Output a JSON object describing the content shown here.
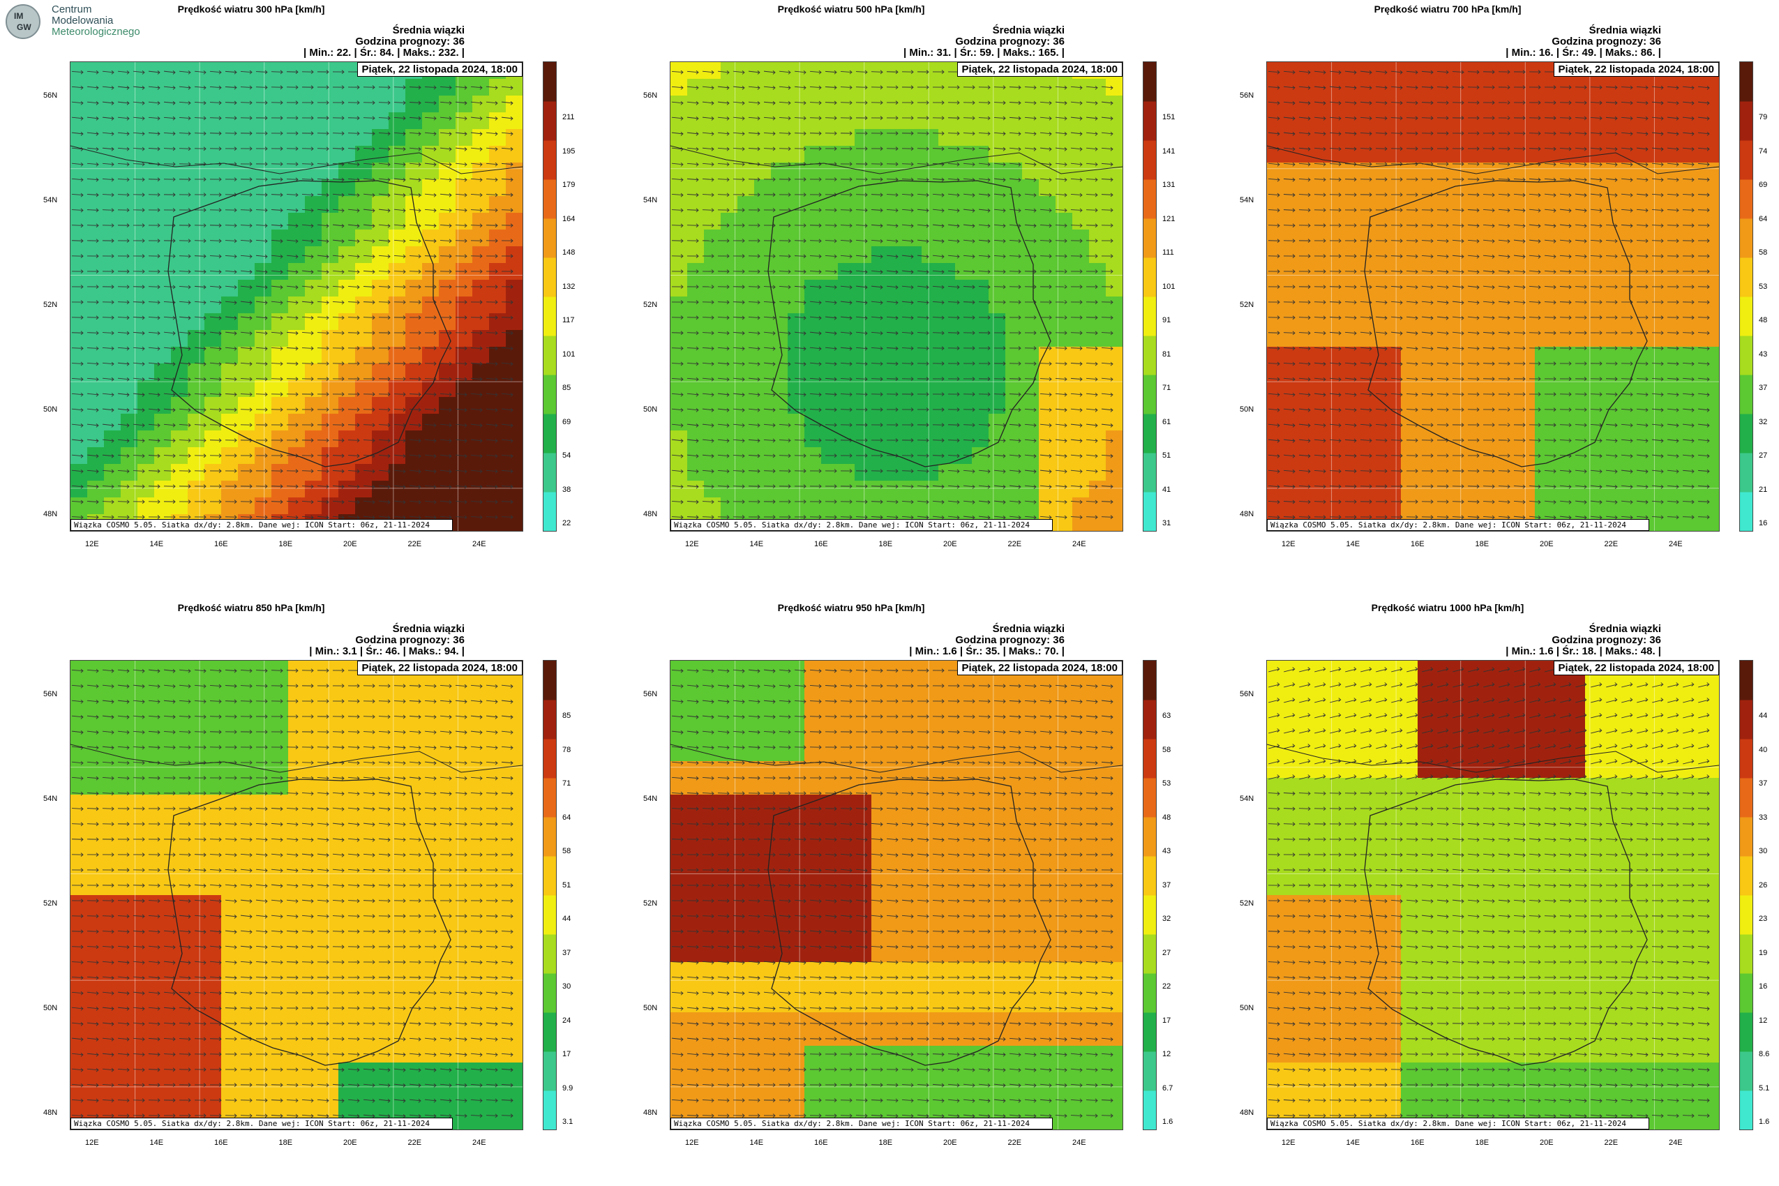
{
  "logo": {
    "abbr_top": "IM",
    "abbr_bottom": "GW",
    "line1": "Centrum",
    "line2": "Modelowania",
    "line3": "Meteorologicznego"
  },
  "common": {
    "ensemble_label": "Średnia wiązki",
    "forecast_hour": "Godzina prognozy: 36",
    "date": "Piątek, 22 listopada 2024, 18:00",
    "footer": "Wiązka COSMO 5.05. Siatka dx/dy: 2.8km. Dane wej: ICON Start: 06z, 21-11-2024",
    "lat_labels": [
      "56N",
      "54N",
      "52N",
      "50N",
      "48N"
    ],
    "lon_labels": [
      "12E",
      "14E",
      "16E",
      "18E",
      "20E",
      "22E",
      "24E"
    ]
  },
  "panels": [
    {
      "title": "Prędkość wiatru 300 hPa [km/h]",
      "stats": "| Min.:      22. | Śr.:      84. | Maks.:     232. |",
      "min": 22,
      "mean": 84,
      "max": 232,
      "colorbar_ticks": [
        "211",
        "195",
        "179",
        "164",
        "148",
        "132",
        "117",
        "101",
        "85",
        "69",
        "54",
        "38",
        "22"
      ]
    },
    {
      "title": "Prędkość wiatru 500 hPa [km/h]",
      "stats": "| Min.:      31. | Śr.:      59. | Maks.:     165. |",
      "min": 31,
      "mean": 59,
      "max": 165,
      "colorbar_ticks": [
        "151",
        "141",
        "131",
        "121",
        "111",
        "101",
        "91",
        "81",
        "71",
        "61",
        "51",
        "41",
        "31"
      ]
    },
    {
      "title": "Prędkość wiatru 700 hPa [km/h]",
      "stats": "| Min.:      16. | Śr.:      49. | Maks.:      86. |",
      "min": 16,
      "mean": 49,
      "max": 86,
      "colorbar_ticks": [
        "79",
        "74",
        "69",
        "64",
        "58",
        "53",
        "48",
        "43",
        "37",
        "32",
        "27",
        "21",
        "16"
      ]
    },
    {
      "title": "Prędkość wiatru 850 hPa [km/h]",
      "stats": "| Min.:     3.1 | Śr.:      46. | Maks.:      94. |",
      "min": 3.1,
      "mean": 46,
      "max": 94,
      "colorbar_ticks": [
        "85",
        "78",
        "71",
        "64",
        "58",
        "51",
        "44",
        "37",
        "30",
        "24",
        "17",
        "9.9",
        "3.1"
      ]
    },
    {
      "title": "Prędkość wiatru 950 hPa [km/h]",
      "stats": "| Min.:     1.6 | Śr.:      35. | Maks.:      70. |",
      "min": 1.6,
      "mean": 35,
      "max": 70,
      "colorbar_ticks": [
        "63",
        "58",
        "53",
        "48",
        "43",
        "37",
        "32",
        "27",
        "22",
        "17",
        "12",
        "6.7",
        "1.6"
      ]
    },
    {
      "title": "Prędkość wiatru 1000 hPa [km/h]",
      "stats": "| Min.:     1.6 | Śr.:      18. | Maks.:      48. |",
      "min": 1.6,
      "mean": 18,
      "max": 48,
      "colorbar_ticks": [
        "44",
        "40",
        "37",
        "33",
        "30",
        "26",
        "23",
        "19",
        "16",
        "12",
        "8.6",
        "5.1",
        "1.6"
      ]
    }
  ],
  "colors": {
    "scale": [
      "#40e8d0",
      "#3cc88a",
      "#22b04a",
      "#5cc832",
      "#a8dc1e",
      "#f0ee10",
      "#f8c814",
      "#f09a18",
      "#e86a18",
      "#cc3a12",
      "#a0220e",
      "#5a1a0a"
    ]
  }
}
